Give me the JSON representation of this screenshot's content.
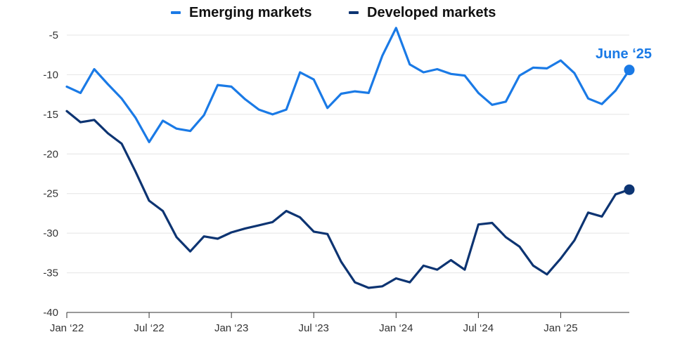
{
  "colors": {
    "emerging": "#1a7ae6",
    "developed": "#0d3472",
    "grid": "#e4e4e4",
    "axis": "#333333"
  },
  "legend": [
    {
      "label": "Emerging markets",
      "color": "#1a7ae6"
    },
    {
      "label": "Developed markets",
      "color": "#0d3472"
    }
  ],
  "end_annotation": "June ‘25",
  "chart_data": {
    "type": "line",
    "title": "",
    "xlabel": "",
    "ylabel": "",
    "ylim": [
      -40,
      -5
    ],
    "xlim": [
      "2022-01",
      "2025-06"
    ],
    "grid": "horizontal",
    "legend_position": "top-center",
    "yticks": [
      -5,
      -10,
      -15,
      -20,
      -25,
      -30,
      -35,
      -40
    ],
    "xticks": [
      {
        "date": "2022-01",
        "label": "Jan ‘22"
      },
      {
        "date": "2022-07",
        "label": "Jul ‘22"
      },
      {
        "date": "2023-01",
        "label": "Jan ‘23"
      },
      {
        "date": "2023-07",
        "label": "Jul ‘23"
      },
      {
        "date": "2024-01",
        "label": "Jan ‘24"
      },
      {
        "date": "2024-07",
        "label": "Jul ‘24"
      },
      {
        "date": "2025-01",
        "label": "Jan ‘25"
      }
    ],
    "x": [
      "2022-01",
      "2022-02",
      "2022-03",
      "2022-04",
      "2022-05",
      "2022-06",
      "2022-07",
      "2022-08",
      "2022-09",
      "2022-10",
      "2022-11",
      "2022-12",
      "2023-01",
      "2023-02",
      "2023-03",
      "2023-04",
      "2023-05",
      "2023-06",
      "2023-07",
      "2023-08",
      "2023-09",
      "2023-10",
      "2023-11",
      "2023-12",
      "2024-01",
      "2024-02",
      "2024-03",
      "2024-04",
      "2024-05",
      "2024-06",
      "2024-07",
      "2024-08",
      "2024-09",
      "2024-10",
      "2024-11",
      "2024-12",
      "2025-01",
      "2025-02",
      "2025-03",
      "2025-04",
      "2025-05",
      "2025-06"
    ],
    "series": [
      {
        "name": "Emerging markets",
        "color": "#1a7ae6",
        "values": [
          -11.5,
          -12.3,
          -9.3,
          -11.2,
          -13.0,
          -15.4,
          -18.5,
          -15.8,
          -16.8,
          -17.1,
          -15.1,
          -11.3,
          -11.5,
          -13.1,
          -14.4,
          -15.0,
          -14.4,
          -9.7,
          -10.6,
          -14.2,
          -12.4,
          -12.1,
          -12.3,
          -7.6,
          -4.1,
          -8.7,
          -9.7,
          -9.3,
          -9.9,
          -10.1,
          -12.3,
          -13.8,
          -13.4,
          -10.1,
          -9.1,
          -9.2,
          -8.2,
          -9.8,
          -13.0,
          -13.7,
          -12.0,
          -9.4
        ]
      },
      {
        "name": "Developed markets",
        "color": "#0d3472",
        "values": [
          -14.6,
          -16.0,
          -15.7,
          -17.4,
          -18.7,
          -22.2,
          -25.9,
          -27.2,
          -30.5,
          -32.3,
          -30.4,
          -30.7,
          -29.9,
          -29.4,
          -29.0,
          -28.6,
          -27.2,
          -28.0,
          -29.8,
          -30.1,
          -33.6,
          -36.2,
          -36.9,
          -36.7,
          -35.7,
          -36.2,
          -34.1,
          -34.6,
          -33.4,
          -34.6,
          -28.9,
          -28.7,
          -30.5,
          -31.7,
          -34.1,
          -35.2,
          -33.2,
          -30.9,
          -27.4,
          -27.9,
          -25.1,
          -24.5
        ]
      }
    ]
  }
}
